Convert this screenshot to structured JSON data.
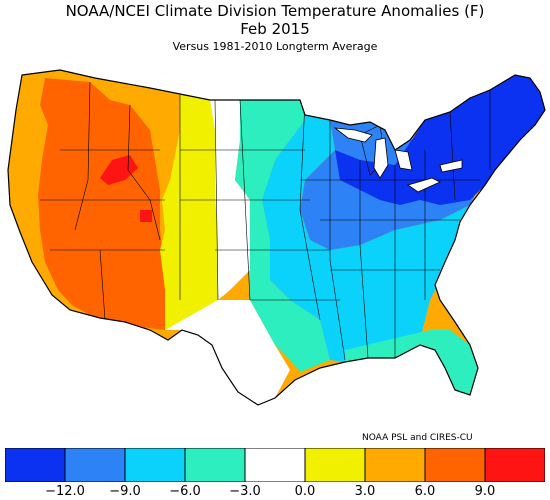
{
  "title": "NOAA/NCEI Climate Division Temperature Anomalies (F)",
  "subtitle": "Feb 2015",
  "caption": "Versus 1981-2010 Longterm Average",
  "credit": "NOAA PSL and CIRES-CU",
  "legend": {
    "bins": [
      {
        "color": "#0a32f0"
      },
      {
        "color": "#2d82f5"
      },
      {
        "color": "#0ad2fa"
      },
      {
        "color": "#2deebe"
      },
      {
        "color": "#ffffff"
      },
      {
        "color": "#f0f000"
      },
      {
        "color": "#ffaa00"
      },
      {
        "color": "#ff6400"
      },
      {
        "color": "#ff1414"
      }
    ],
    "ticks": [
      "−12.0",
      "−9.0",
      "−6.0",
      "−3.0",
      "0.0",
      "3.0",
      "6.0",
      "9.0"
    ]
  },
  "regions": [
    {
      "name": "pacific-northwest",
      "anomaly_color": "#ffaa00"
    },
    {
      "name": "california-coast",
      "anomaly_color": "#ffaa00"
    },
    {
      "name": "great-basin",
      "anomaly_color": "#ff6400"
    },
    {
      "name": "idaho-hotspot",
      "anomaly_color": "#ff1414"
    },
    {
      "name": "utah-hotspot",
      "anomaly_color": "#ff1414"
    },
    {
      "name": "rockies",
      "anomaly_color": "#f0f000"
    },
    {
      "name": "northern-plains",
      "anomaly_color": "#ffffff"
    },
    {
      "name": "southern-texas",
      "anomaly_color": "#ffffff"
    },
    {
      "name": "central-plains",
      "anomaly_color": "#2deebe"
    },
    {
      "name": "midwest-south",
      "anomaly_color": "#0ad2fa"
    },
    {
      "name": "great-lakes-ohio",
      "anomaly_color": "#2d82f5"
    },
    {
      "name": "northeast",
      "anomaly_color": "#0a32f0"
    },
    {
      "name": "florida",
      "anomaly_color": "#2deebe"
    }
  ]
}
